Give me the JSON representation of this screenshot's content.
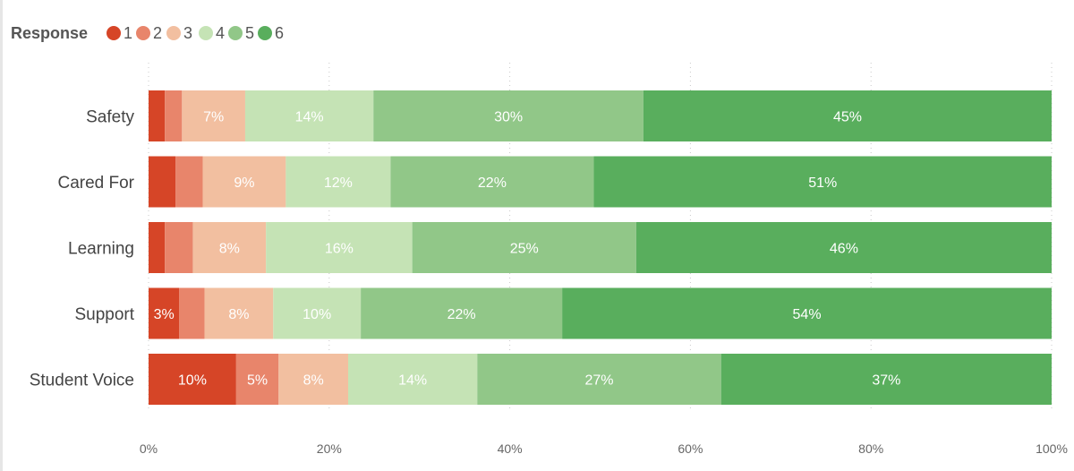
{
  "chart_data": {
    "type": "bar",
    "orientation": "horizontal",
    "stacked": "percent",
    "legend": {
      "title": "Response",
      "placement": "top-left",
      "entries": [
        "1",
        "2",
        "3",
        "4",
        "5",
        "6"
      ]
    },
    "categories": [
      "Safety",
      "Cared For",
      "Learning",
      "Support",
      "Student Voice"
    ],
    "series": [
      {
        "name": "1",
        "color": "#d64527",
        "values": [
          1.8,
          3.0,
          1.8,
          3.4,
          9.7
        ]
      },
      {
        "name": "2",
        "color": "#e8856b",
        "values": [
          1.9,
          3.0,
          3.1,
          2.8,
          4.7
        ]
      },
      {
        "name": "3",
        "color": "#f2bfa0",
        "values": [
          7.0,
          9.2,
          8.1,
          7.6,
          7.7
        ]
      },
      {
        "name": "4",
        "color": "#c5e3b5",
        "values": [
          14.2,
          11.6,
          16.2,
          9.7,
          14.3
        ]
      },
      {
        "name": "5",
        "color": "#91c788",
        "values": [
          29.9,
          22.5,
          24.8,
          22.3,
          27.0
        ]
      },
      {
        "name": "6",
        "color": "#59ae5d",
        "values": [
          45.2,
          50.7,
          46.0,
          54.2,
          36.6
        ]
      }
    ],
    "data_labels": [
      [
        "",
        "",
        "7%",
        "14%",
        "30%",
        "45%"
      ],
      [
        "",
        "",
        "9%",
        "12%",
        "22%",
        "51%"
      ],
      [
        "",
        "",
        "8%",
        "16%",
        "25%",
        "46%"
      ],
      [
        "3%",
        "",
        "8%",
        "10%",
        "22%",
        "54%"
      ],
      [
        "10%",
        "5%",
        "8%",
        "14%",
        "27%",
        "37%"
      ]
    ],
    "xaxis": {
      "ticks": [
        "0%",
        "20%",
        "40%",
        "60%",
        "80%",
        "100%"
      ],
      "tick_values": [
        0,
        20,
        40,
        60,
        80,
        100
      ],
      "range": [
        0,
        100
      ]
    },
    "grid": "vertical-dotted"
  }
}
